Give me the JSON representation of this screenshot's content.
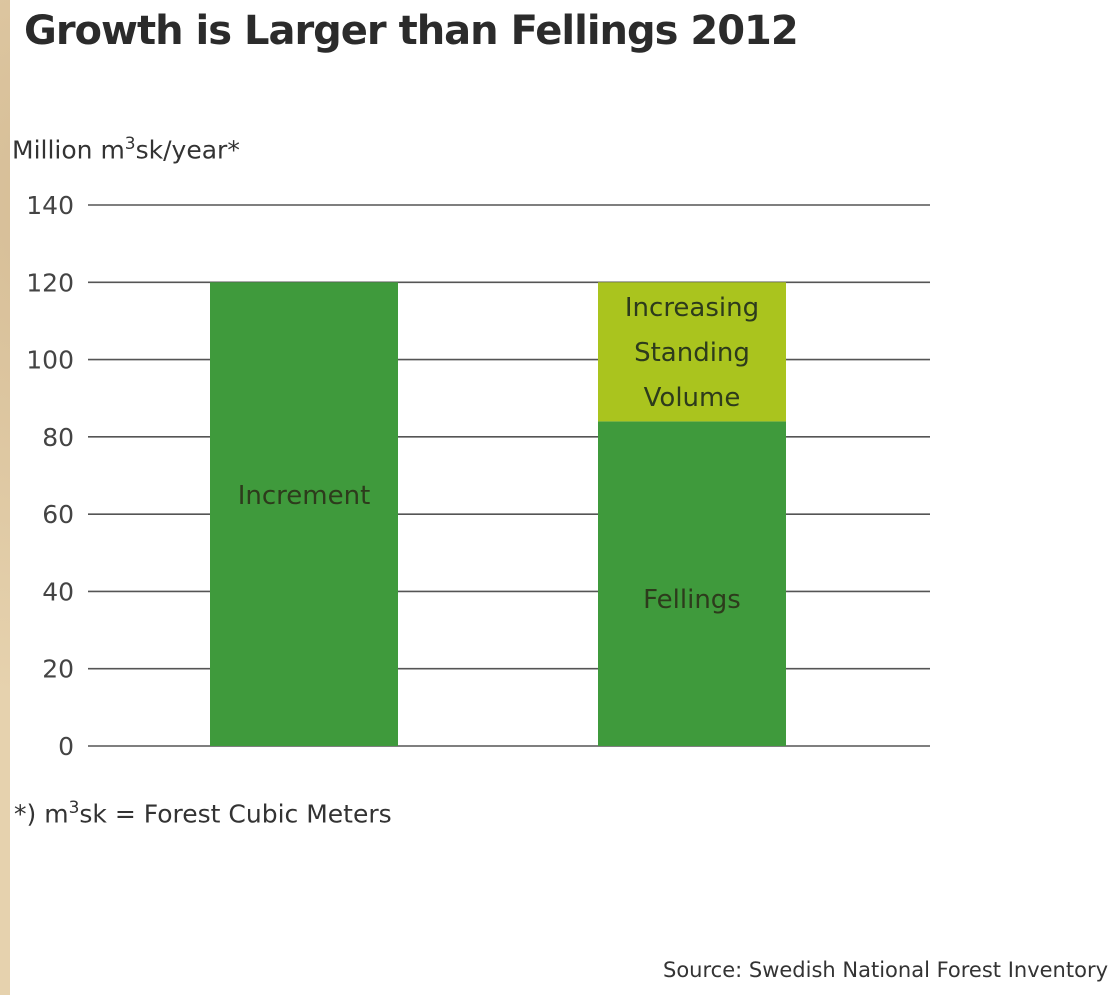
{
  "title": "Growth is Larger than Fellings 2012",
  "ylabel_prefix": "Million m",
  "ylabel_sup": "3",
  "ylabel_suffix": "sk/year*",
  "footnote_prefix": "*) m",
  "footnote_sup": "3",
  "footnote_suffix": "sk = Forest Cubic Meters",
  "source": "Source: Swedish National Forest Inventory",
  "colors": {
    "dark_green": "#3f9a3c",
    "light_green": "#aac41e",
    "gridline": "#555555",
    "background": "#ffffff",
    "page_border": "#e6d2ae"
  },
  "chart_data": {
    "type": "bar",
    "stacked": true,
    "ylim": [
      0,
      140
    ],
    "yticks": [
      0,
      20,
      40,
      60,
      80,
      100,
      120,
      140
    ],
    "grid": true,
    "legend": "none",
    "bars": [
      {
        "segments": [
          {
            "label": "Increment",
            "value": 120,
            "color": "#3f9a3c"
          }
        ]
      },
      {
        "segments": [
          {
            "label": "Fellings",
            "value": 84,
            "color": "#3f9a3c"
          },
          {
            "label": "Increasing Standing Volume",
            "value": 36,
            "color": "#aac41e"
          }
        ]
      }
    ]
  }
}
